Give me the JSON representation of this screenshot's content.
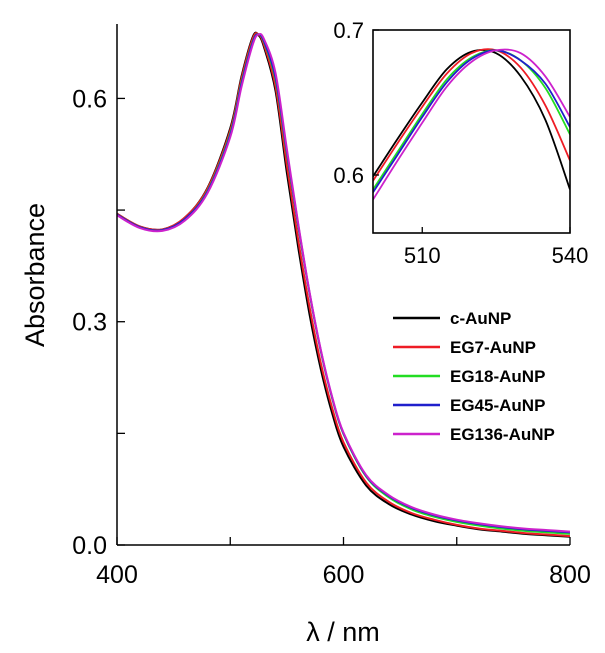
{
  "chart_data": [
    {
      "type": "line",
      "title": "",
      "xlabel": "λ / nm",
      "ylabel": "Absorbance",
      "xlim": [
        400,
        800
      ],
      "ylim": [
        0.0,
        0.7
      ],
      "xticks": [
        400,
        600,
        800
      ],
      "xtick_labels": [
        "400",
        "600",
        "800"
      ],
      "yticks": [
        0.0,
        0.3,
        0.6
      ],
      "ytick_labels": [
        "0.0",
        "0.3",
        "0.6"
      ],
      "grid": false,
      "legend_position": "right",
      "series": [
        {
          "name": "c-AuNP",
          "color": "#000000",
          "x": [
            400,
            420,
            440,
            460,
            480,
            500,
            510,
            520,
            525,
            530,
            540,
            550,
            560,
            570,
            580,
            590,
            600,
            620,
            640,
            660,
            680,
            700,
            720,
            740,
            760,
            780,
            800
          ],
          "y": [
            0.445,
            0.428,
            0.424,
            0.44,
            0.48,
            0.56,
            0.63,
            0.683,
            0.685,
            0.668,
            0.61,
            0.5,
            0.4,
            0.31,
            0.236,
            0.177,
            0.132,
            0.08,
            0.055,
            0.041,
            0.032,
            0.026,
            0.021,
            0.018,
            0.015,
            0.013,
            0.011
          ]
        },
        {
          "name": "EG7-AuNP",
          "color": "#ee1c25",
          "x": [
            400,
            420,
            440,
            460,
            480,
            500,
            510,
            520,
            525,
            530,
            540,
            550,
            560,
            570,
            580,
            590,
            600,
            620,
            640,
            660,
            680,
            700,
            720,
            740,
            760,
            780,
            800
          ],
          "y": [
            0.445,
            0.428,
            0.424,
            0.44,
            0.479,
            0.557,
            0.627,
            0.681,
            0.686,
            0.671,
            0.616,
            0.51,
            0.41,
            0.32,
            0.244,
            0.184,
            0.138,
            0.084,
            0.058,
            0.043,
            0.034,
            0.027,
            0.022,
            0.019,
            0.016,
            0.014,
            0.012
          ]
        },
        {
          "name": "EG18-AuNP",
          "color": "#22dd22",
          "x": [
            400,
            420,
            440,
            460,
            480,
            500,
            510,
            520,
            525,
            530,
            540,
            550,
            560,
            570,
            580,
            590,
            600,
            620,
            640,
            660,
            680,
            700,
            720,
            740,
            760,
            780,
            800
          ],
          "y": [
            0.444,
            0.427,
            0.423,
            0.438,
            0.476,
            0.553,
            0.622,
            0.677,
            0.686,
            0.675,
            0.625,
            0.525,
            0.428,
            0.338,
            0.26,
            0.197,
            0.149,
            0.092,
            0.064,
            0.048,
            0.038,
            0.031,
            0.026,
            0.022,
            0.019,
            0.017,
            0.015
          ]
        },
        {
          "name": "EG45-AuNP",
          "color": "#1f1fcc",
          "x": [
            400,
            420,
            440,
            460,
            480,
            500,
            510,
            520,
            525,
            530,
            540,
            550,
            560,
            570,
            580,
            590,
            600,
            620,
            640,
            660,
            680,
            700,
            720,
            740,
            760,
            780,
            800
          ],
          "y": [
            0.444,
            0.427,
            0.423,
            0.438,
            0.475,
            0.551,
            0.62,
            0.676,
            0.686,
            0.676,
            0.628,
            0.528,
            0.43,
            0.339,
            0.261,
            0.198,
            0.15,
            0.093,
            0.066,
            0.05,
            0.04,
            0.033,
            0.028,
            0.024,
            0.021,
            0.019,
            0.017
          ]
        },
        {
          "name": "EG136-AuNP",
          "color": "#cc22cc",
          "x": [
            400,
            420,
            440,
            460,
            480,
            500,
            510,
            520,
            525,
            530,
            540,
            550,
            560,
            570,
            580,
            590,
            600,
            620,
            640,
            660,
            680,
            700,
            720,
            740,
            760,
            780,
            800
          ],
          "y": [
            0.443,
            0.426,
            0.422,
            0.436,
            0.473,
            0.548,
            0.616,
            0.673,
            0.686,
            0.679,
            0.634,
            0.532,
            0.432,
            0.34,
            0.262,
            0.199,
            0.151,
            0.094,
            0.067,
            0.051,
            0.041,
            0.034,
            0.029,
            0.025,
            0.022,
            0.02,
            0.018
          ]
        }
      ]
    },
    {
      "type": "line",
      "title": "",
      "xlabel": "",
      "ylabel": "",
      "xlim": [
        500,
        540
      ],
      "ylim": [
        0.56,
        0.7
      ],
      "xticks": [
        510,
        540
      ],
      "xtick_labels": [
        "510",
        "540"
      ],
      "yticks": [
        0.6,
        0.7
      ],
      "ytick_labels": [
        "0.6",
        "0.7"
      ],
      "grid": false,
      "series": [
        {
          "name": "c-AuNP",
          "color": "#000000",
          "x": [
            500,
            505,
            510,
            515,
            520,
            525,
            530,
            535,
            540
          ],
          "y": [
            0.599,
            0.625,
            0.65,
            0.673,
            0.685,
            0.684,
            0.668,
            0.638,
            0.59
          ]
        },
        {
          "name": "EG7-AuNP",
          "color": "#ee1c25",
          "x": [
            500,
            505,
            510,
            515,
            520,
            525,
            530,
            535,
            540
          ],
          "y": [
            0.596,
            0.622,
            0.647,
            0.67,
            0.684,
            0.686,
            0.674,
            0.648,
            0.61
          ]
        },
        {
          "name": "EG18-AuNP",
          "color": "#22dd22",
          "x": [
            500,
            505,
            510,
            515,
            520,
            525,
            530,
            535,
            540
          ],
          "y": [
            0.59,
            0.616,
            0.642,
            0.666,
            0.681,
            0.686,
            0.679,
            0.66,
            0.628
          ]
        },
        {
          "name": "EG45-AuNP",
          "color": "#1f1fcc",
          "x": [
            500,
            505,
            510,
            515,
            520,
            525,
            530,
            535,
            540
          ],
          "y": [
            0.588,
            0.614,
            0.64,
            0.664,
            0.68,
            0.686,
            0.679,
            0.663,
            0.633
          ]
        },
        {
          "name": "EG136-AuNP",
          "color": "#cc22cc",
          "x": [
            500,
            505,
            510,
            515,
            520,
            525,
            530,
            535,
            540
          ],
          "y": [
            0.583,
            0.61,
            0.636,
            0.661,
            0.678,
            0.686,
            0.684,
            0.668,
            0.64
          ]
        }
      ]
    }
  ]
}
